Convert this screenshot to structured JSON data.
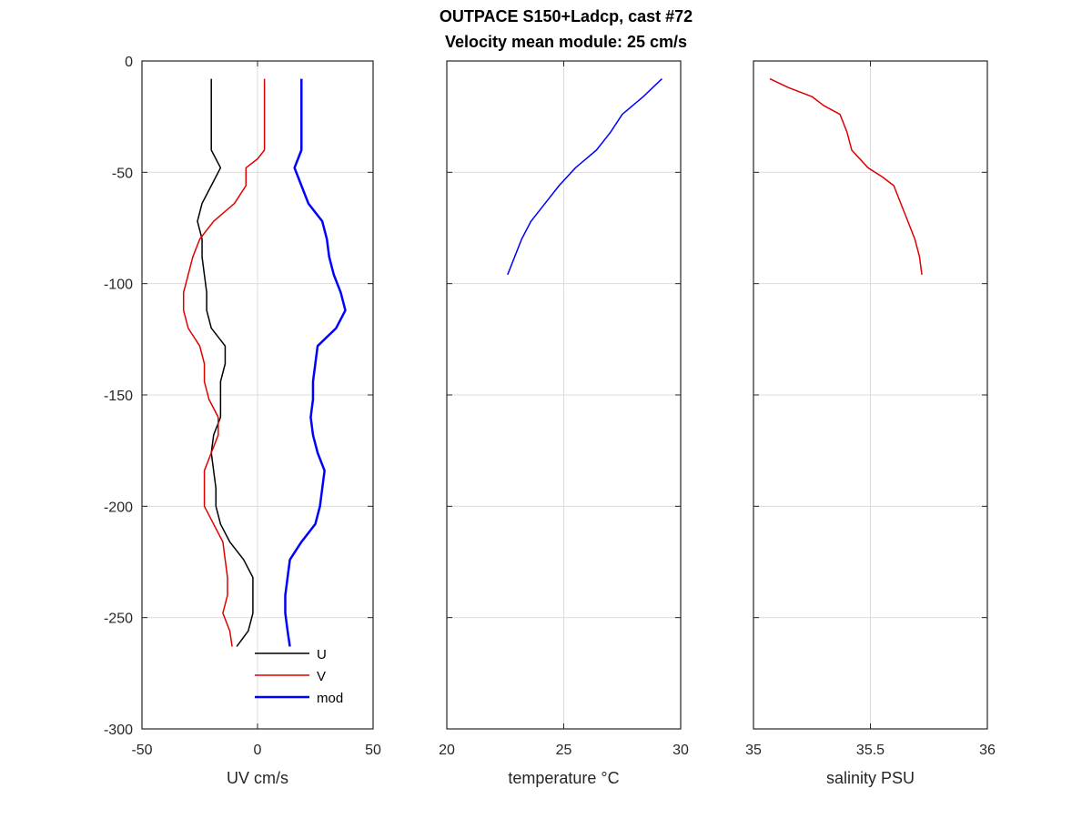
{
  "figure": {
    "title_line1": "OUTPACE S150+Ladcp, cast #72",
    "title_line2": "Velocity mean module:  25 cm/s"
  },
  "chart_data": [
    {
      "type": "line",
      "name": "velocity-panel",
      "xlabel": "UV cm/s",
      "ylabel": "",
      "xlim": [
        -50,
        50
      ],
      "ylim": [
        -300,
        0
      ],
      "xticks": [
        -50,
        0,
        50
      ],
      "yticks": [
        -300,
        -250,
        -200,
        -150,
        -100,
        -50,
        0
      ],
      "grid": true,
      "legend_position": "bottom-right",
      "series": [
        {
          "name": "U",
          "color": "#000000",
          "points": [
            [
              -20,
              -8
            ],
            [
              -20,
              -24
            ],
            [
              -20,
              -40
            ],
            [
              -16,
              -48
            ],
            [
              -20,
              -56
            ],
            [
              -24,
              -64
            ],
            [
              -26,
              -72
            ],
            [
              -24,
              -80
            ],
            [
              -24,
              -88
            ],
            [
              -23,
              -96
            ],
            [
              -22,
              -104
            ],
            [
              -22,
              -112
            ],
            [
              -20,
              -120
            ],
            [
              -14,
              -128
            ],
            [
              -14,
              -136
            ],
            [
              -16,
              -144
            ],
            [
              -16,
              -152
            ],
            [
              -16,
              -160
            ],
            [
              -19,
              -168
            ],
            [
              -20,
              -176
            ],
            [
              -19,
              -184
            ],
            [
              -18,
              -192
            ],
            [
              -18,
              -200
            ],
            [
              -16,
              -208
            ],
            [
              -12,
              -216
            ],
            [
              -6,
              -224
            ],
            [
              -2,
              -232
            ],
            [
              -2,
              -240
            ],
            [
              -2,
              -248
            ],
            [
              -4,
              -256
            ],
            [
              -9,
              -263
            ]
          ]
        },
        {
          "name": "V",
          "color": "#e00000",
          "points": [
            [
              3,
              -8
            ],
            [
              3,
              -24
            ],
            [
              3,
              -40
            ],
            [
              0,
              -44
            ],
            [
              -5,
              -48
            ],
            [
              -5,
              -56
            ],
            [
              -10,
              -64
            ],
            [
              -19,
              -72
            ],
            [
              -25,
              -80
            ],
            [
              -28,
              -88
            ],
            [
              -30,
              -96
            ],
            [
              -32,
              -104
            ],
            [
              -32,
              -112
            ],
            [
              -30,
              -120
            ],
            [
              -25,
              -128
            ],
            [
              -23,
              -136
            ],
            [
              -23,
              -144
            ],
            [
              -21,
              -152
            ],
            [
              -17,
              -160
            ],
            [
              -17,
              -168
            ],
            [
              -20,
              -176
            ],
            [
              -23,
              -184
            ],
            [
              -23,
              -192
            ],
            [
              -23,
              -200
            ],
            [
              -19,
              -208
            ],
            [
              -15,
              -216
            ],
            [
              -14,
              -224
            ],
            [
              -13,
              -232
            ],
            [
              -13,
              -240
            ],
            [
              -15,
              -248
            ],
            [
              -12,
              -256
            ],
            [
              -11,
              -263
            ]
          ]
        },
        {
          "name": "mod",
          "color": "#0000ff",
          "points": [
            [
              19,
              -8
            ],
            [
              19,
              -24
            ],
            [
              19,
              -40
            ],
            [
              16,
              -48
            ],
            [
              19,
              -56
            ],
            [
              22,
              -64
            ],
            [
              28,
              -72
            ],
            [
              30,
              -80
            ],
            [
              31,
              -88
            ],
            [
              33,
              -96
            ],
            [
              36,
              -104
            ],
            [
              38,
              -112
            ],
            [
              34,
              -120
            ],
            [
              26,
              -128
            ],
            [
              25,
              -136
            ],
            [
              24,
              -144
            ],
            [
              24,
              -152
            ],
            [
              23,
              -160
            ],
            [
              24,
              -168
            ],
            [
              26,
              -176
            ],
            [
              29,
              -184
            ],
            [
              28,
              -192
            ],
            [
              27,
              -200
            ],
            [
              25,
              -208
            ],
            [
              19,
              -216
            ],
            [
              14,
              -224
            ],
            [
              13,
              -232
            ],
            [
              12,
              -240
            ],
            [
              12,
              -248
            ],
            [
              13,
              -256
            ],
            [
              14,
              -263
            ]
          ]
        }
      ]
    },
    {
      "type": "line",
      "name": "temperature-panel",
      "xlabel": "temperature °C",
      "ylabel": "",
      "xlim": [
        20,
        30
      ],
      "ylim": [
        -300,
        0
      ],
      "xticks": [
        20,
        25,
        30
      ],
      "yticks": [
        -300,
        -250,
        -200,
        -150,
        -100,
        -50,
        0
      ],
      "grid": true,
      "series": [
        {
          "name": "",
          "color": "#0000ff",
          "points": [
            [
              29.2,
              -8
            ],
            [
              28.4,
              -16
            ],
            [
              27.5,
              -24
            ],
            [
              27,
              -32
            ],
            [
              26.4,
              -40
            ],
            [
              25.5,
              -48
            ],
            [
              24.8,
              -56
            ],
            [
              24.2,
              -64
            ],
            [
              23.6,
              -72
            ],
            [
              23.2,
              -80
            ],
            [
              22.9,
              -88
            ],
            [
              22.6,
              -96
            ]
          ]
        }
      ]
    },
    {
      "type": "line",
      "name": "salinity-panel",
      "xlabel": "salinity PSU",
      "ylabel": "",
      "xlim": [
        35,
        36
      ],
      "ylim": [
        -300,
        0
      ],
      "xticks": [
        35,
        35.5,
        36
      ],
      "yticks": [
        -300,
        -250,
        -200,
        -150,
        -100,
        -50,
        0
      ],
      "grid": true,
      "series": [
        {
          "name": "",
          "color": "#e00000",
          "points": [
            [
              35.07,
              -8
            ],
            [
              35.15,
              -12
            ],
            [
              35.25,
              -16
            ],
            [
              35.3,
              -20
            ],
            [
              35.37,
              -24
            ],
            [
              35.4,
              -32
            ],
            [
              35.42,
              -40
            ],
            [
              35.49,
              -48
            ],
            [
              35.55,
              -52
            ],
            [
              35.6,
              -56
            ],
            [
              35.63,
              -64
            ],
            [
              35.66,
              -72
            ],
            [
              35.69,
              -80
            ],
            [
              35.71,
              -88
            ],
            [
              35.72,
              -96
            ]
          ]
        }
      ]
    }
  ]
}
